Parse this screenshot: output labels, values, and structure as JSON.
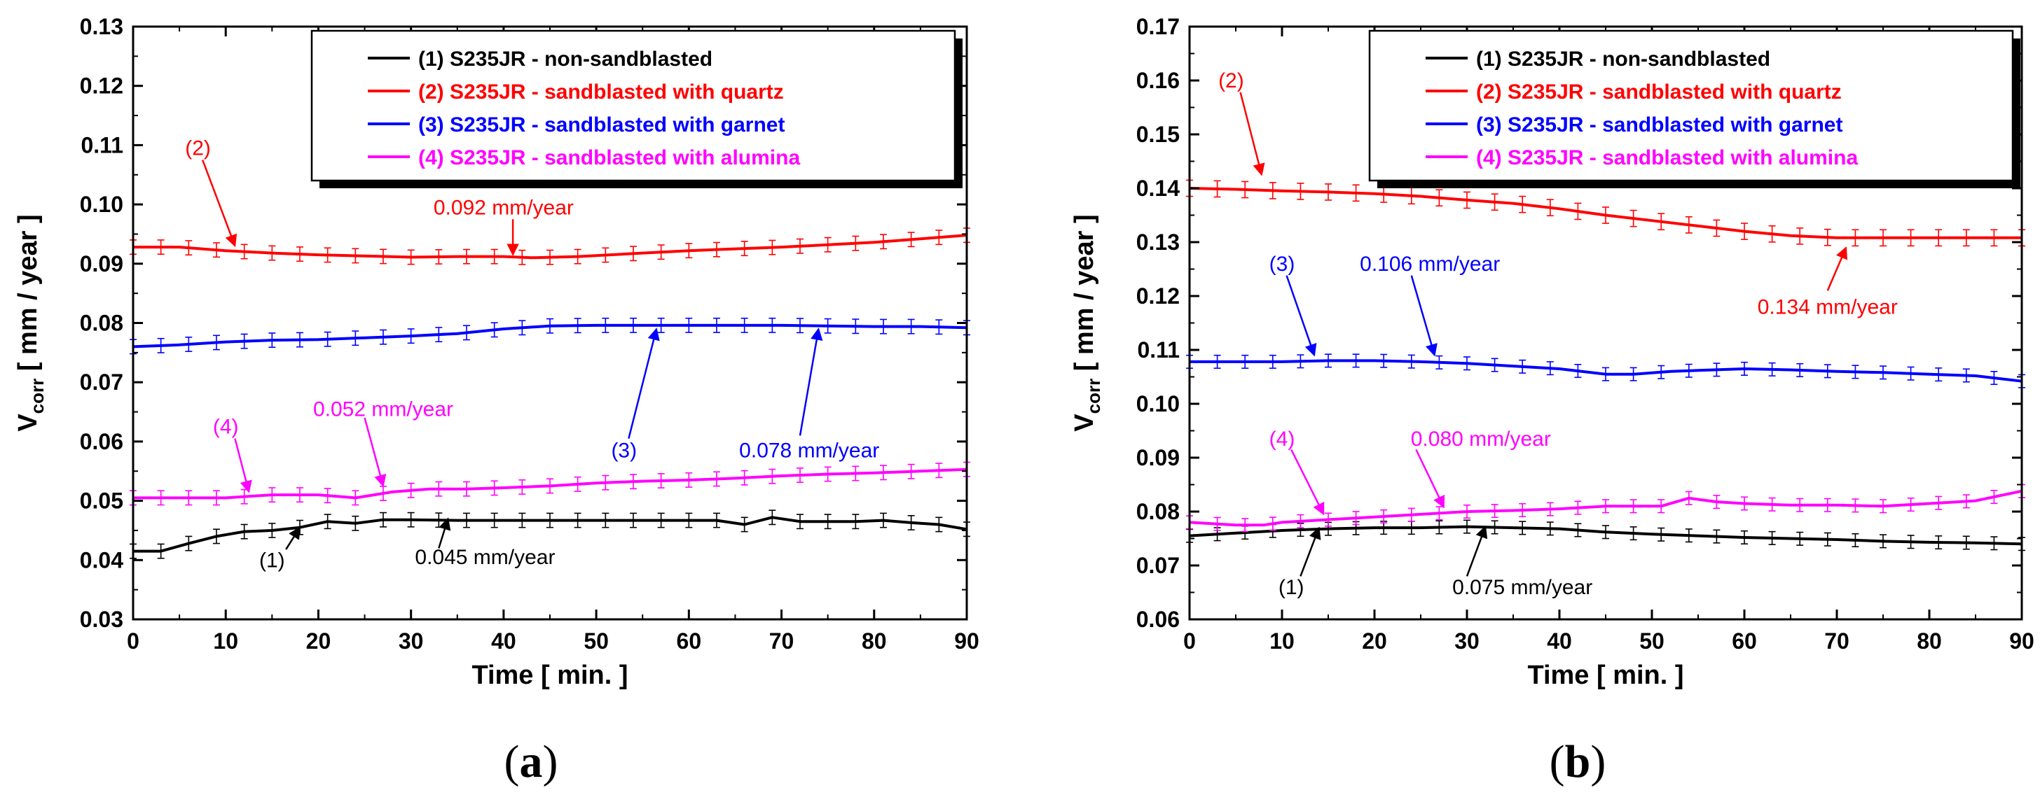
{
  "chart_data": [
    {
      "type": "line",
      "panel_label": "a",
      "xlabel": "Time [ min. ]",
      "ylabel_main": "V",
      "ylabel_sub": "corr",
      "ylabel_rest": " [ mm / year ]",
      "xlim": [
        0,
        90
      ],
      "ylim": [
        0.03,
        0.13
      ],
      "xticks": [
        "0",
        "10",
        "20",
        "30",
        "40",
        "50",
        "60",
        "70",
        "80",
        "90"
      ],
      "yticks": [
        "0.03",
        "0.04",
        "0.05",
        "0.06",
        "0.07",
        "0.08",
        "0.09",
        "0.10",
        "0.11",
        "0.12",
        "0.13"
      ],
      "legend_position": "top-right",
      "series": [
        {
          "name": "(1) S235JR - non-sandblasted",
          "color": "#000000",
          "error": 0.0012,
          "points": [
            [
              0,
              0.0415
            ],
            [
              3,
              0.0415
            ],
            [
              6,
              0.0428
            ],
            [
              9,
              0.044
            ],
            [
              12,
              0.0448
            ],
            [
              15,
              0.045
            ],
            [
              18,
              0.0455
            ],
            [
              21,
              0.0465
            ],
            [
              24,
              0.0462
            ],
            [
              27,
              0.0468
            ],
            [
              30,
              0.0468
            ],
            [
              35,
              0.0467
            ],
            [
              40,
              0.0467
            ],
            [
              45,
              0.0467
            ],
            [
              50,
              0.0467
            ],
            [
              55,
              0.0467
            ],
            [
              60,
              0.0467
            ],
            [
              63,
              0.0467
            ],
            [
              66,
              0.046
            ],
            [
              69,
              0.0472
            ],
            [
              72,
              0.0465
            ],
            [
              75,
              0.0465
            ],
            [
              78,
              0.0465
            ],
            [
              81,
              0.0467
            ],
            [
              84,
              0.0463
            ],
            [
              87,
              0.046
            ],
            [
              90,
              0.0452
            ]
          ]
        },
        {
          "name": "(2) S235JR - sandblasted with quartz",
          "color": "#ff0000",
          "error": 0.0012,
          "points": [
            [
              0,
              0.0928
            ],
            [
              5,
              0.0928
            ],
            [
              10,
              0.0922
            ],
            [
              15,
              0.0918
            ],
            [
              20,
              0.0915
            ],
            [
              25,
              0.0913
            ],
            [
              30,
              0.0911
            ],
            [
              35,
              0.0912
            ],
            [
              40,
              0.0912
            ],
            [
              43,
              0.091
            ],
            [
              48,
              0.0912
            ],
            [
              55,
              0.0918
            ],
            [
              60,
              0.0922
            ],
            [
              65,
              0.0925
            ],
            [
              70,
              0.0928
            ],
            [
              75,
              0.0932
            ],
            [
              80,
              0.0936
            ],
            [
              85,
              0.0942
            ],
            [
              90,
              0.0948
            ]
          ]
        },
        {
          "name": "(3) S235JR - sandblasted with garnet",
          "color": "#0000ff",
          "error": 0.0012,
          "points": [
            [
              0,
              0.076
            ],
            [
              5,
              0.0763
            ],
            [
              10,
              0.0768
            ],
            [
              15,
              0.0771
            ],
            [
              20,
              0.0772
            ],
            [
              25,
              0.0775
            ],
            [
              30,
              0.0778
            ],
            [
              35,
              0.0782
            ],
            [
              40,
              0.079
            ],
            [
              45,
              0.0795
            ],
            [
              50,
              0.0796
            ],
            [
              55,
              0.0796
            ],
            [
              60,
              0.0796
            ],
            [
              65,
              0.0796
            ],
            [
              70,
              0.0796
            ],
            [
              75,
              0.0795
            ],
            [
              80,
              0.0794
            ],
            [
              85,
              0.0794
            ],
            [
              90,
              0.0792
            ]
          ]
        },
        {
          "name": "(4) S235JR - sandblasted with alumina",
          "color": "#ff00ff",
          "error": 0.0012,
          "points": [
            [
              0,
              0.0505
            ],
            [
              5,
              0.0505
            ],
            [
              10,
              0.0505
            ],
            [
              15,
              0.051
            ],
            [
              20,
              0.051
            ],
            [
              24,
              0.0505
            ],
            [
              28,
              0.0515
            ],
            [
              32,
              0.052
            ],
            [
              36,
              0.052
            ],
            [
              40,
              0.0522
            ],
            [
              45,
              0.0525
            ],
            [
              50,
              0.053
            ],
            [
              55,
              0.0533
            ],
            [
              60,
              0.0535
            ],
            [
              65,
              0.0538
            ],
            [
              70,
              0.0542
            ],
            [
              75,
              0.0545
            ],
            [
              80,
              0.0547
            ],
            [
              85,
              0.055
            ],
            [
              90,
              0.0553
            ]
          ]
        }
      ],
      "annotations": [
        {
          "text": "(2)",
          "color": "#ff0000",
          "label_at": [
            7,
            0.1095
          ],
          "arrow_from": [
            7.5,
            0.1075
          ],
          "arrow_to": [
            11,
            0.093
          ]
        },
        {
          "text": "0.092 mm/year",
          "color": "#ff0000",
          "label_at": [
            40,
            0.0995
          ],
          "arrow_from": [
            41,
            0.0975
          ],
          "arrow_to": [
            41,
            0.0915
          ]
        },
        {
          "text": "(3)",
          "color": "#0000ff",
          "label_at": [
            53,
            0.0585
          ],
          "arrow_from": [
            53.5,
            0.0605
          ],
          "arrow_to": [
            56.5,
            0.079
          ]
        },
        {
          "text": "0.078 mm/year",
          "color": "#0000ff",
          "label_at": [
            73,
            0.0585
          ],
          "arrow_from": [
            72,
            0.061
          ],
          "arrow_to": [
            74,
            0.079
          ]
        },
        {
          "text": "(4)",
          "color": "#ff00ff",
          "label_at": [
            10,
            0.0625
          ],
          "arrow_from": [
            11,
            0.0605
          ],
          "arrow_to": [
            12.5,
            0.0515
          ]
        },
        {
          "text": "0.052 mm/year",
          "color": "#ff00ff",
          "label_at": [
            27,
            0.0655
          ],
          "arrow_from": [
            25,
            0.064
          ],
          "arrow_to": [
            27,
            0.0525
          ]
        },
        {
          "text": "(1)",
          "color": "#000000",
          "label_at": [
            15,
            0.04
          ],
          "arrow_from": [
            16.5,
            0.0418
          ],
          "arrow_to": [
            18,
            0.0455
          ]
        },
        {
          "text": "0.045 mm/year",
          "color": "#000000",
          "label_at": [
            38,
            0.0405
          ],
          "arrow_from": [
            33,
            0.042
          ],
          "arrow_to": [
            34,
            0.047
          ]
        }
      ]
    },
    {
      "type": "line",
      "panel_label": "b",
      "xlabel": "Time [ min. ]",
      "ylabel_main": "V",
      "ylabel_sub": "corr",
      "ylabel_rest": " [ mm / year ]",
      "xlim": [
        0,
        90
      ],
      "ylim": [
        0.06,
        0.17
      ],
      "xticks": [
        "0",
        "10",
        "20",
        "30",
        "40",
        "50",
        "60",
        "70",
        "80",
        "90"
      ],
      "yticks": [
        "0.06",
        "0.07",
        "0.08",
        "0.09",
        "0.10",
        "0.11",
        "0.12",
        "0.13",
        "0.14",
        "0.15",
        "0.16",
        "0.17"
      ],
      "legend_position": "top-right",
      "series": [
        {
          "name": "(1) S235JR - non-sandblasted",
          "color": "#000000",
          "error": 0.0012,
          "points": [
            [
              0,
              0.0755
            ],
            [
              5,
              0.076
            ],
            [
              10,
              0.0765
            ],
            [
              15,
              0.0768
            ],
            [
              20,
              0.077
            ],
            [
              25,
              0.077
            ],
            [
              30,
              0.0772
            ],
            [
              35,
              0.077
            ],
            [
              40,
              0.0768
            ],
            [
              45,
              0.0762
            ],
            [
              50,
              0.0758
            ],
            [
              55,
              0.0755
            ],
            [
              60,
              0.0752
            ],
            [
              65,
              0.075
            ],
            [
              70,
              0.0748
            ],
            [
              75,
              0.0745
            ],
            [
              80,
              0.0743
            ],
            [
              85,
              0.0742
            ],
            [
              90,
              0.074
            ]
          ]
        },
        {
          "name": "(2) S235JR - sandblasted with quartz",
          "color": "#ff0000",
          "error": 0.0015,
          "points": [
            [
              0,
              0.14
            ],
            [
              5,
              0.1398
            ],
            [
              10,
              0.1395
            ],
            [
              15,
              0.1393
            ],
            [
              20,
              0.139
            ],
            [
              25,
              0.1385
            ],
            [
              30,
              0.1378
            ],
            [
              35,
              0.1372
            ],
            [
              40,
              0.1362
            ],
            [
              45,
              0.135
            ],
            [
              50,
              0.134
            ],
            [
              55,
              0.133
            ],
            [
              60,
              0.132
            ],
            [
              65,
              0.1312
            ],
            [
              70,
              0.1308
            ],
            [
              75,
              0.1308
            ],
            [
              80,
              0.1308
            ],
            [
              85,
              0.1308
            ],
            [
              90,
              0.1308
            ]
          ]
        },
        {
          "name": "(3) S235JR - sandblasted with garnet",
          "color": "#0000ff",
          "error": 0.0012,
          "points": [
            [
              0,
              0.1078
            ],
            [
              5,
              0.1078
            ],
            [
              10,
              0.1078
            ],
            [
              15,
              0.108
            ],
            [
              20,
              0.108
            ],
            [
              25,
              0.1078
            ],
            [
              30,
              0.1075
            ],
            [
              35,
              0.107
            ],
            [
              40,
              0.1065
            ],
            [
              45,
              0.1055
            ],
            [
              48,
              0.1055
            ],
            [
              52,
              0.106
            ],
            [
              55,
              0.1062
            ],
            [
              60,
              0.1065
            ],
            [
              65,
              0.1063
            ],
            [
              70,
              0.106
            ],
            [
              75,
              0.1058
            ],
            [
              80,
              0.1055
            ],
            [
              85,
              0.1052
            ],
            [
              90,
              0.1042
            ]
          ]
        },
        {
          "name": "(4) S235JR - sandblasted with alumina",
          "color": "#ff00ff",
          "error": 0.0012,
          "points": [
            [
              0,
              0.078
            ],
            [
              5,
              0.0775
            ],
            [
              8,
              0.0775
            ],
            [
              10,
              0.078
            ],
            [
              15,
              0.0785
            ],
            [
              20,
              0.079
            ],
            [
              25,
              0.0795
            ],
            [
              30,
              0.08
            ],
            [
              35,
              0.0802
            ],
            [
              40,
              0.0805
            ],
            [
              45,
              0.081
            ],
            [
              51,
              0.081
            ],
            [
              54,
              0.0825
            ],
            [
              57,
              0.0818
            ],
            [
              60,
              0.0815
            ],
            [
              65,
              0.0812
            ],
            [
              70,
              0.0812
            ],
            [
              75,
              0.081
            ],
            [
              80,
              0.0815
            ],
            [
              85,
              0.082
            ],
            [
              90,
              0.0838
            ]
          ]
        }
      ],
      "annotations": [
        {
          "text": "(2)",
          "color": "#ff0000",
          "label_at": [
            4.5,
            0.16
          ],
          "arrow_from": [
            5.5,
            0.1578
          ],
          "arrow_to": [
            7.8,
            0.1425
          ]
        },
        {
          "text": "0.134 mm/year",
          "color": "#ff0000",
          "label_at": [
            69,
            0.118
          ],
          "arrow_from": [
            69,
            0.121
          ],
          "arrow_to": [
            71,
            0.129
          ]
        },
        {
          "text": "(3)",
          "color": "#0000ff",
          "label_at": [
            10,
            0.126
          ],
          "arrow_from": [
            10.5,
            0.1238
          ],
          "arrow_to": [
            13.5,
            0.109
          ]
        },
        {
          "text": "0.106 mm/year",
          "color": "#0000ff",
          "label_at": [
            26,
            0.126
          ],
          "arrow_from": [
            24,
            0.1238
          ],
          "arrow_to": [
            26.5,
            0.109
          ]
        },
        {
          "text": "(4)",
          "color": "#ff00ff",
          "label_at": [
            10,
            0.0935
          ],
          "arrow_from": [
            11,
            0.0915
          ],
          "arrow_to": [
            14.5,
            0.0795
          ]
        },
        {
          "text": "0.080 mm/year",
          "color": "#ff00ff",
          "label_at": [
            31.5,
            0.0935
          ],
          "arrow_from": [
            24.5,
            0.0915
          ],
          "arrow_to": [
            27.5,
            0.0808
          ]
        },
        {
          "text": "(1)",
          "color": "#000000",
          "label_at": [
            11,
            0.066
          ],
          "arrow_from": [
            12,
            0.068
          ],
          "arrow_to": [
            14,
            0.077
          ]
        },
        {
          "text": "0.075 mm/year",
          "color": "#000000",
          "label_at": [
            36,
            0.066
          ],
          "arrow_from": [
            30,
            0.068
          ],
          "arrow_to": [
            32,
            0.0772
          ]
        }
      ]
    }
  ]
}
